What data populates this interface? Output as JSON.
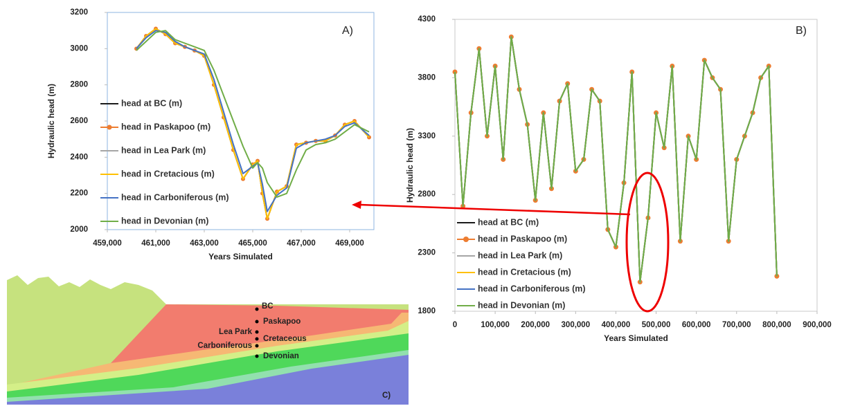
{
  "chart_data": [
    {
      "type": "line",
      "panel_label": "A)",
      "x_label": "Years Simulated",
      "y_label": "Hydraulic head (m)",
      "x": [
        460200,
        460600,
        461000,
        461400,
        461800,
        462200,
        462600,
        463000,
        463400,
        463800,
        464200,
        464600,
        465000,
        465200,
        465400,
        465600,
        466000,
        466400,
        466800,
        467200,
        467600,
        468000,
        468400,
        468800,
        469200,
        469800
      ],
      "xlim": [
        459000,
        470000
      ],
      "xticks": [
        {
          "value": 459000,
          "label": "459,000"
        },
        {
          "value": 461000,
          "label": "461,000"
        },
        {
          "value": 463000,
          "label": "463,000"
        },
        {
          "value": 465000,
          "label": "465,000"
        },
        {
          "value": 467000,
          "label": "467,000"
        },
        {
          "value": 469000,
          "label": "469,000"
        }
      ],
      "ylim": [
        2000,
        3200
      ],
      "yticks": [
        2000,
        2200,
        2400,
        2600,
        2800,
        3000,
        3200
      ],
      "series": [
        {
          "name": "head at BC (m)",
          "color": "#1a1a1a",
          "values": [
            3000,
            3070,
            3110,
            3080,
            3030,
            3010,
            2990,
            2960,
            2800,
            2620,
            2440,
            2280,
            2360,
            2380,
            2200,
            2060,
            2210,
            2240,
            2470,
            2480,
            2490,
            2490,
            2520,
            2580,
            2600,
            2510
          ]
        },
        {
          "name": "head in Paskapoo (m)",
          "color": "#ed7d31",
          "marker": "circle",
          "values": [
            3000,
            3070,
            3110,
            3080,
            3030,
            3010,
            2990,
            2960,
            2800,
            2620,
            2440,
            2280,
            2360,
            2380,
            2200,
            2060,
            2210,
            2240,
            2470,
            2480,
            2490,
            2490,
            2520,
            2580,
            2600,
            2510
          ]
        },
        {
          "name": "head in Lea Park (m)",
          "color": "#a5a5a5",
          "values": [
            3000,
            3070,
            3110,
            3080,
            3030,
            3010,
            2990,
            2960,
            2800,
            2620,
            2440,
            2280,
            2360,
            2380,
            2200,
            2060,
            2210,
            2240,
            2470,
            2480,
            2490,
            2490,
            2520,
            2580,
            2600,
            2510
          ]
        },
        {
          "name": "head in Cretacious (m)",
          "color": "#ffc000",
          "values": [
            3000,
            3070,
            3110,
            3080,
            3030,
            3010,
            2990,
            2960,
            2800,
            2620,
            2440,
            2280,
            2360,
            2380,
            2200,
            2060,
            2210,
            2240,
            2470,
            2480,
            2490,
            2490,
            2520,
            2580,
            2600,
            2510
          ]
        },
        {
          "name": "head in Carboniferous (m)",
          "color": "#4472c4",
          "values": [
            3000,
            3060,
            3100,
            3090,
            3040,
            3010,
            2990,
            2970,
            2830,
            2650,
            2470,
            2310,
            2350,
            2370,
            2250,
            2100,
            2190,
            2230,
            2450,
            2480,
            2490,
            2500,
            2520,
            2570,
            2590,
            2520
          ]
        },
        {
          "name": "head in Devonian (m)",
          "color": "#70ad47",
          "values": [
            2990,
            3040,
            3090,
            3100,
            3050,
            3030,
            3010,
            2990,
            2880,
            2740,
            2600,
            2460,
            2340,
            2370,
            2340,
            2260,
            2180,
            2200,
            2330,
            2440,
            2470,
            2480,
            2500,
            2540,
            2580,
            2540
          ]
        }
      ]
    },
    {
      "type": "line",
      "panel_label": "B)",
      "x_label": "Years Simulated",
      "y_label": "Hydraulic head (m)",
      "x": [
        0,
        20000,
        40000,
        60000,
        80000,
        100000,
        120000,
        140000,
        160000,
        180000,
        200000,
        220000,
        240000,
        260000,
        280000,
        300000,
        320000,
        340000,
        360000,
        380000,
        400000,
        420000,
        440000,
        460000,
        480000,
        500000,
        520000,
        540000,
        560000,
        580000,
        600000,
        620000,
        640000,
        660000,
        680000,
        700000,
        720000,
        740000,
        760000,
        780000,
        800000
      ],
      "xlim": [
        0,
        900000
      ],
      "xticks": [
        0,
        {
          "value": 100000,
          "label": "100,000"
        },
        {
          "value": 200000,
          "label": "200,000"
        },
        {
          "value": 300000,
          "label": "300,000"
        },
        {
          "value": 400000,
          "label": "400,000"
        },
        {
          "value": 500000,
          "label": "500,000"
        },
        {
          "value": 600000,
          "label": "600,000"
        },
        {
          "value": 700000,
          "label": "700,000"
        },
        {
          "value": 800000,
          "label": "800,000"
        },
        {
          "value": 900000,
          "label": "900,000"
        }
      ],
      "ylim": [
        1800,
        4300
      ],
      "yticks": [
        1800,
        2300,
        2800,
        3300,
        3800,
        4300
      ],
      "series": [
        {
          "name": "head at BC (m)",
          "color": "#1a1a1a",
          "values": [
            3850,
            2700,
            3500,
            4050,
            3300,
            3900,
            3100,
            4150,
            3700,
            3400,
            2750,
            3500,
            2850,
            3600,
            3750,
            3000,
            3100,
            3700,
            3600,
            2500,
            2350,
            2900,
            3850,
            2050,
            2600,
            3500,
            3200,
            3900,
            2400,
            3300,
            3100,
            3950,
            3800,
            3700,
            2400,
            3100,
            3300,
            3500,
            3800,
            3900,
            2100
          ]
        },
        {
          "name": "head in Paskapoo (m)",
          "color": "#ed7d31",
          "marker": "circle",
          "values": [
            3850,
            2700,
            3500,
            4050,
            3300,
            3900,
            3100,
            4150,
            3700,
            3400,
            2750,
            3500,
            2850,
            3600,
            3750,
            3000,
            3100,
            3700,
            3600,
            2500,
            2350,
            2900,
            3850,
            2050,
            2600,
            3500,
            3200,
            3900,
            2400,
            3300,
            3100,
            3950,
            3800,
            3700,
            2400,
            3100,
            3300,
            3500,
            3800,
            3900,
            2100
          ]
        },
        {
          "name": "head in Lea Park (m)",
          "color": "#a5a5a5",
          "values": [
            3850,
            2700,
            3500,
            4050,
            3300,
            3900,
            3100,
            4150,
            3700,
            3400,
            2750,
            3500,
            2850,
            3600,
            3750,
            3000,
            3100,
            3700,
            3600,
            2500,
            2350,
            2900,
            3850,
            2050,
            2600,
            3500,
            3200,
            3900,
            2400,
            3300,
            3100,
            3950,
            3800,
            3700,
            2400,
            3100,
            3300,
            3500,
            3800,
            3900,
            2100
          ]
        },
        {
          "name": "head in Cretacious (m)",
          "color": "#ffc000",
          "values": [
            3850,
            2700,
            3500,
            4050,
            3300,
            3900,
            3100,
            4150,
            3700,
            3400,
            2750,
            3500,
            2850,
            3600,
            3750,
            3000,
            3100,
            3700,
            3600,
            2500,
            2350,
            2900,
            3850,
            2050,
            2600,
            3500,
            3200,
            3900,
            2400,
            3300,
            3100,
            3950,
            3800,
            3700,
            2400,
            3100,
            3300,
            3500,
            3800,
            3900,
            2100
          ]
        },
        {
          "name": "head in Carboniferous (m)",
          "color": "#4472c4",
          "values": [
            3850,
            2700,
            3500,
            4050,
            3300,
            3900,
            3100,
            4150,
            3700,
            3400,
            2750,
            3500,
            2850,
            3600,
            3750,
            3000,
            3100,
            3700,
            3600,
            2500,
            2350,
            2900,
            3850,
            2050,
            2600,
            3500,
            3200,
            3900,
            2400,
            3300,
            3100,
            3950,
            3800,
            3700,
            2400,
            3100,
            3300,
            3500,
            3800,
            3900,
            2100
          ]
        },
        {
          "name": "head in Devonian (m)",
          "color": "#70ad47",
          "values": [
            3850,
            2700,
            3500,
            4050,
            3300,
            3900,
            3100,
            4150,
            3700,
            3400,
            2750,
            3500,
            2850,
            3600,
            3750,
            3000,
            3100,
            3700,
            3600,
            2500,
            2350,
            2900,
            3850,
            2050,
            2600,
            3500,
            3200,
            3900,
            2400,
            3300,
            3100,
            3950,
            3800,
            3700,
            2400,
            3100,
            3300,
            3500,
            3800,
            3900,
            2100
          ]
        }
      ]
    }
  ],
  "cross_section": {
    "panel_label": "C)",
    "labels": [
      "BC",
      "Paskapoo",
      "Lea Park",
      "Cretaceous",
      "Carboniferous",
      "Devonian"
    ]
  }
}
